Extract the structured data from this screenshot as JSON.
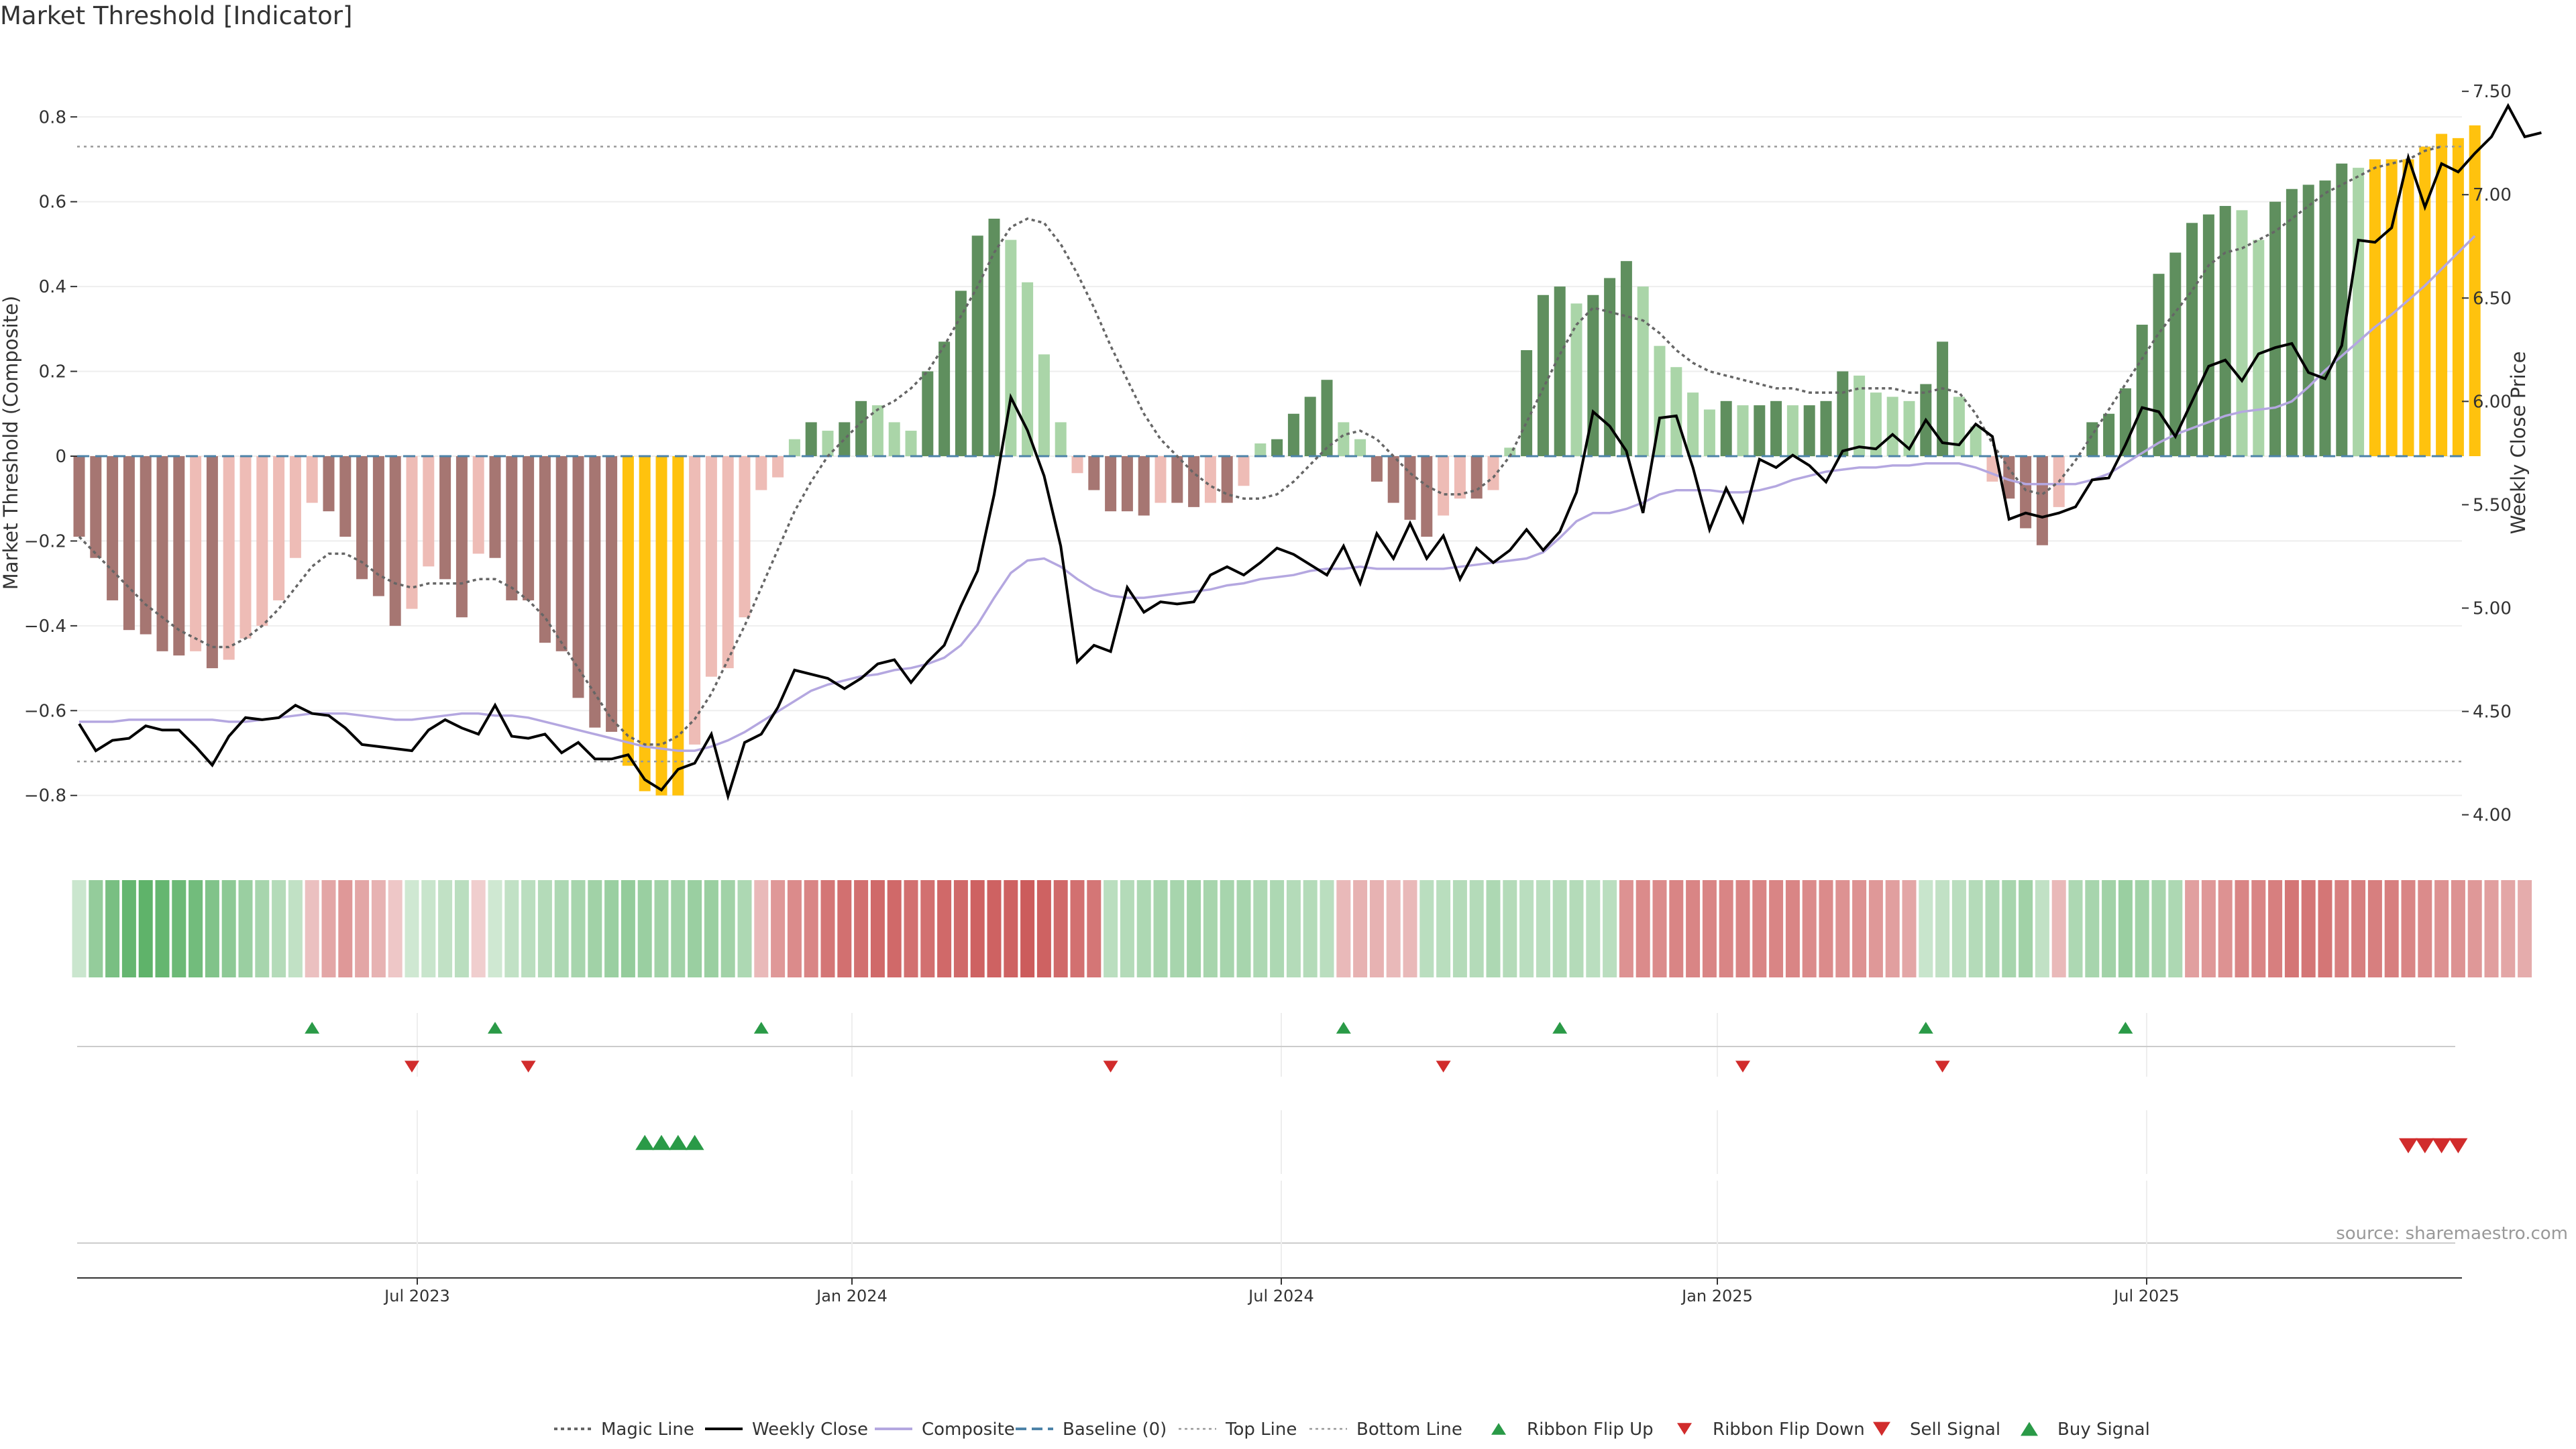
{
  "title": "Market Threshold [Indicator]",
  "source": "source: sharemaestro.com",
  "colors": {
    "bar_red_dark": "#a67672",
    "bar_red_light": "#eebcb6",
    "bar_green_dark": "#5f8f5e",
    "bar_green_light": "#aad5a8",
    "bar_extreme": "#ffc20e",
    "close_line": "#000000",
    "composite_line": "#b4a7e0",
    "magic_line": "#666666",
    "baseline": "#4d83a8",
    "flip_up": "#2a9a47",
    "flip_down": "#d12c2c",
    "ribbon_red": "#cc5c5c",
    "ribbon_green": "#5fb36a"
  },
  "chart_data": {
    "type": "bar",
    "title": "Market Threshold [Indicator]",
    "ylabel": "Market Threshold (Composite)",
    "y2label": "Weekly Close Price",
    "ylim": [
      -0.87,
      0.87
    ],
    "y2lim": [
      3.95,
      7.52
    ],
    "yticks": [
      "0.8",
      "0.6",
      "0.4",
      "0.2",
      "0",
      "−0.2",
      "−0.4",
      "−0.6",
      "−0.8"
    ],
    "y2ticks": [
      "7.50",
      "7.00",
      "6.50",
      "6.00",
      "5.50",
      "5.00",
      "4.50",
      "4.00"
    ],
    "x_dates": [
      "Jul 2023",
      "Jan 2024",
      "Jul 2024",
      "Jan 2025",
      "Jul 2025"
    ],
    "top_line": 0.73,
    "bottom_line": -0.72,
    "composite_bars": [
      -0.19,
      -0.24,
      -0.34,
      -0.41,
      -0.42,
      -0.46,
      -0.47,
      -0.46,
      -0.5,
      -0.48,
      -0.43,
      -0.4,
      -0.34,
      -0.24,
      -0.11,
      -0.13,
      -0.19,
      -0.29,
      -0.33,
      -0.4,
      -0.36,
      -0.26,
      -0.29,
      -0.38,
      -0.23,
      -0.24,
      -0.34,
      -0.34,
      -0.44,
      -0.46,
      -0.57,
      -0.64,
      -0.65,
      -0.73,
      -0.79,
      -0.8,
      -0.8,
      -0.68,
      -0.52,
      -0.5,
      -0.38,
      -0.08,
      -0.05,
      0.04,
      0.08,
      0.06,
      0.08,
      0.13,
      0.12,
      0.08,
      0.06,
      0.2,
      0.27,
      0.39,
      0.52,
      0.56,
      0.51,
      0.41,
      0.24,
      0.08,
      -0.04,
      -0.08,
      -0.13,
      -0.13,
      -0.14,
      -0.11,
      -0.11,
      -0.12,
      -0.11,
      -0.11,
      -0.07,
      0.03,
      0.04,
      0.1,
      0.14,
      0.18,
      0.08,
      0.04,
      -0.06,
      -0.11,
      -0.15,
      -0.19,
      -0.14,
      -0.1,
      -0.1,
      -0.08,
      0.02,
      0.25,
      0.38,
      0.4,
      0.36,
      0.38,
      0.42,
      0.46,
      0.4,
      0.26,
      0.21,
      0.15,
      0.11,
      0.13,
      0.12,
      0.12,
      0.13,
      0.12,
      0.12,
      0.13,
      0.2,
      0.19,
      0.15,
      0.14,
      0.13,
      0.17,
      0.27,
      0.14,
      0.07,
      -0.06,
      -0.1,
      -0.17,
      -0.21,
      -0.12,
      0.0,
      0.08,
      0.1,
      0.16,
      0.31,
      0.43,
      0.48,
      0.55,
      0.57,
      0.59,
      0.58,
      0.51,
      0.6,
      0.63,
      0.64,
      0.65,
      0.69,
      0.68,
      0.7,
      0.7,
      0.7,
      0.73,
      0.76,
      0.75,
      0.78
    ],
    "magic_line": [
      -0.19,
      -0.23,
      -0.27,
      -0.31,
      -0.35,
      -0.38,
      -0.41,
      -0.43,
      -0.45,
      -0.45,
      -0.43,
      -0.4,
      -0.36,
      -0.31,
      -0.26,
      -0.23,
      -0.23,
      -0.25,
      -0.28,
      -0.3,
      -0.31,
      -0.3,
      -0.3,
      -0.3,
      -0.29,
      -0.29,
      -0.31,
      -0.34,
      -0.38,
      -0.44,
      -0.5,
      -0.56,
      -0.62,
      -0.66,
      -0.68,
      -0.68,
      -0.66,
      -0.62,
      -0.56,
      -0.48,
      -0.4,
      -0.31,
      -0.22,
      -0.13,
      -0.06,
      0.0,
      0.04,
      0.08,
      0.11,
      0.13,
      0.16,
      0.2,
      0.26,
      0.33,
      0.4,
      0.48,
      0.54,
      0.56,
      0.55,
      0.5,
      0.43,
      0.35,
      0.26,
      0.18,
      0.1,
      0.04,
      0.0,
      -0.04,
      -0.07,
      -0.09,
      -0.1,
      -0.1,
      -0.09,
      -0.06,
      -0.02,
      0.02,
      0.05,
      0.06,
      0.04,
      0.0,
      -0.04,
      -0.07,
      -0.09,
      -0.09,
      -0.08,
      -0.05,
      0.0,
      0.08,
      0.16,
      0.24,
      0.31,
      0.35,
      0.34,
      0.33,
      0.32,
      0.29,
      0.25,
      0.22,
      0.2,
      0.19,
      0.18,
      0.17,
      0.16,
      0.16,
      0.15,
      0.15,
      0.15,
      0.16,
      0.16,
      0.16,
      0.15,
      0.15,
      0.16,
      0.15,
      0.1,
      0.03,
      -0.03,
      -0.08,
      -0.09,
      -0.06,
      -0.01,
      0.05,
      0.11,
      0.17,
      0.23,
      0.29,
      0.34,
      0.39,
      0.45,
      0.48,
      0.49,
      0.51,
      0.53,
      0.56,
      0.59,
      0.62,
      0.64,
      0.66,
      0.68,
      0.69,
      0.7,
      0.72,
      0.73
    ],
    "composite_line": [
      4.45,
      4.45,
      4.45,
      4.46,
      4.46,
      4.46,
      4.46,
      4.46,
      4.46,
      4.45,
      4.45,
      4.46,
      4.47,
      4.48,
      4.49,
      4.49,
      4.49,
      4.48,
      4.47,
      4.46,
      4.46,
      4.47,
      4.48,
      4.49,
      4.49,
      4.48,
      4.48,
      4.47,
      4.45,
      4.43,
      4.41,
      4.39,
      4.37,
      4.35,
      4.33,
      4.32,
      4.31,
      4.31,
      4.33,
      4.36,
      4.4,
      4.45,
      4.5,
      4.55,
      4.6,
      4.63,
      4.65,
      4.67,
      4.68,
      4.7,
      4.71,
      4.73,
      4.76,
      4.82,
      4.92,
      5.05,
      5.17,
      5.23,
      5.24,
      5.2,
      5.14,
      5.09,
      5.06,
      5.05,
      5.05,
      5.06,
      5.07,
      5.08,
      5.09,
      5.11,
      5.12,
      5.14,
      5.15,
      5.16,
      5.18,
      5.19,
      5.19,
      5.2,
      5.19,
      5.19,
      5.19,
      5.19,
      5.19,
      5.2,
      5.21,
      5.22,
      5.23,
      5.24,
      5.27,
      5.34,
      5.42,
      5.46,
      5.46,
      5.48,
      5.51,
      5.55,
      5.57,
      5.57,
      5.57,
      5.56,
      5.56,
      5.57,
      5.59,
      5.62,
      5.64,
      5.66,
      5.67,
      5.68,
      5.68,
      5.69,
      5.69,
      5.7,
      5.7,
      5.7,
      5.68,
      5.65,
      5.62,
      5.6,
      5.6,
      5.6,
      5.6,
      5.62,
      5.65,
      5.7,
      5.75,
      5.8,
      5.84,
      5.87,
      5.9,
      5.93,
      5.95,
      5.96,
      5.97,
      6.0,
      6.07,
      6.15,
      6.22,
      6.29,
      6.36,
      6.42,
      6.49,
      6.56,
      6.64,
      6.72,
      6.8
    ],
    "weekly_close": [
      4.44,
      4.31,
      4.36,
      4.37,
      4.43,
      4.41,
      4.41,
      4.33,
      4.24,
      4.38,
      4.47,
      4.46,
      4.47,
      4.53,
      4.49,
      4.48,
      4.42,
      4.34,
      4.33,
      4.32,
      4.31,
      4.41,
      4.46,
      4.42,
      4.39,
      4.53,
      4.38,
      4.37,
      4.39,
      4.3,
      4.35,
      4.27,
      4.27,
      4.29,
      4.17,
      4.12,
      4.22,
      4.25,
      4.39,
      4.09,
      4.35,
      4.39,
      4.52,
      4.7,
      4.68,
      4.66,
      4.61,
      4.66,
      4.73,
      4.75,
      4.64,
      4.74,
      4.82,
      5.01,
      5.18,
      5.55,
      6.02,
      5.86,
      5.64,
      5.3,
      4.74,
      4.82,
      4.79,
      5.1,
      4.98,
      5.03,
      5.02,
      5.03,
      5.16,
      5.2,
      5.16,
      5.22,
      5.29,
      5.26,
      5.21,
      5.16,
      5.3,
      5.12,
      5.36,
      5.24,
      5.41,
      5.24,
      5.35,
      5.14,
      5.29,
      5.22,
      5.28,
      5.38,
      5.28,
      5.37,
      5.56,
      5.95,
      5.88,
      5.76,
      5.46,
      5.92,
      5.93,
      5.68,
      5.38,
      5.58,
      5.42,
      5.72,
      5.68,
      5.74,
      5.69,
      5.61,
      5.76,
      5.78,
      5.77,
      5.84,
      5.77,
      5.91,
      5.8,
      5.79,
      5.89,
      5.83,
      5.43,
      5.46,
      5.44,
      5.46,
      5.49,
      5.62,
      5.63,
      5.79,
      5.97,
      5.95,
      5.83,
      6.0,
      6.17,
      6.2,
      6.1,
      6.23,
      6.26,
      6.28,
      6.14,
      6.11,
      6.27,
      6.78,
      6.77,
      6.84,
      7.18,
      6.94,
      7.15,
      7.11,
      7.2,
      7.28,
      7.43,
      7.28,
      7.3
    ],
    "ribbon": [
      0.18,
      0.6,
      0.8,
      0.95,
      1.0,
      0.95,
      0.9,
      0.85,
      0.75,
      0.65,
      0.55,
      0.45,
      0.35,
      0.25,
      -0.25,
      -0.45,
      -0.55,
      -0.45,
      -0.35,
      -0.2,
      0.15,
      0.2,
      0.25,
      0.3,
      -0.15,
      0.15,
      0.25,
      0.3,
      0.35,
      0.4,
      0.45,
      0.5,
      0.55,
      0.6,
      0.55,
      0.5,
      0.5,
      0.55,
      0.55,
      0.5,
      0.4,
      -0.3,
      -0.55,
      -0.65,
      -0.7,
      -0.8,
      -0.85,
      -0.85,
      -0.9,
      -0.9,
      -0.85,
      -0.85,
      -0.9,
      -0.9,
      -0.95,
      -0.95,
      -0.95,
      -1.0,
      -0.95,
      -0.9,
      -0.85,
      -0.8,
      0.3,
      0.35,
      0.4,
      0.45,
      0.45,
      0.5,
      0.45,
      0.45,
      0.45,
      0.4,
      0.4,
      0.35,
      0.35,
      0.3,
      -0.3,
      -0.35,
      -0.35,
      -0.3,
      -0.3,
      0.3,
      0.32,
      0.35,
      0.35,
      0.4,
      0.35,
      0.3,
      0.3,
      0.35,
      0.35,
      0.3,
      0.3,
      -0.6,
      -0.65,
      -0.65,
      -0.7,
      -0.7,
      -0.7,
      -0.7,
      -0.7,
      -0.7,
      -0.7,
      -0.7,
      -0.65,
      -0.65,
      -0.6,
      -0.6,
      -0.55,
      -0.5,
      -0.45,
      0.2,
      0.25,
      0.3,
      0.35,
      0.4,
      0.45,
      0.5,
      0.25,
      -0.3,
      0.4,
      0.45,
      0.5,
      0.55,
      0.5,
      0.45,
      0.4,
      -0.5,
      -0.55,
      -0.6,
      -0.7,
      -0.7,
      -0.75,
      -0.8,
      -0.8,
      -0.8,
      -0.75,
      -0.75,
      -0.75,
      -0.75,
      -0.7,
      -0.65,
      -0.6,
      -0.6,
      -0.55,
      -0.5,
      -0.45,
      -0.4
    ],
    "ribbon_flip_up": [
      14,
      25,
      41,
      76,
      89,
      111,
      123
    ],
    "ribbon_flip_down": [
      20,
      27,
      62,
      82,
      100,
      112
    ],
    "buy_signal": [
      34,
      35,
      36,
      37
    ],
    "sell_signal": [
      140,
      141,
      142,
      143
    ]
  },
  "legend": [
    {
      "label": "Magic Line",
      "kind": "line-dotted",
      "color": "#666666"
    },
    {
      "label": "Weekly Close",
      "kind": "line-solid",
      "color": "#000000"
    },
    {
      "label": "Composite",
      "kind": "line-solid",
      "color": "#b4a7e0"
    },
    {
      "label": "Baseline (0)",
      "kind": "line-dashed",
      "color": "#4d83a8"
    },
    {
      "label": "Top Line",
      "kind": "line-dotted-light",
      "color": "#999999"
    },
    {
      "label": "Bottom Line",
      "kind": "line-dotted-light",
      "color": "#999999"
    },
    {
      "label": "Ribbon Flip Up",
      "kind": "tri-up",
      "color": "#2a9a47"
    },
    {
      "label": "Ribbon Flip Down",
      "kind": "tri-down",
      "color": "#d12c2c"
    },
    {
      "label": "Sell Signal",
      "kind": "tri-down-big",
      "color": "#d12c2c"
    },
    {
      "label": "Buy Signal",
      "kind": "tri-up-big",
      "color": "#2a9a47"
    }
  ]
}
